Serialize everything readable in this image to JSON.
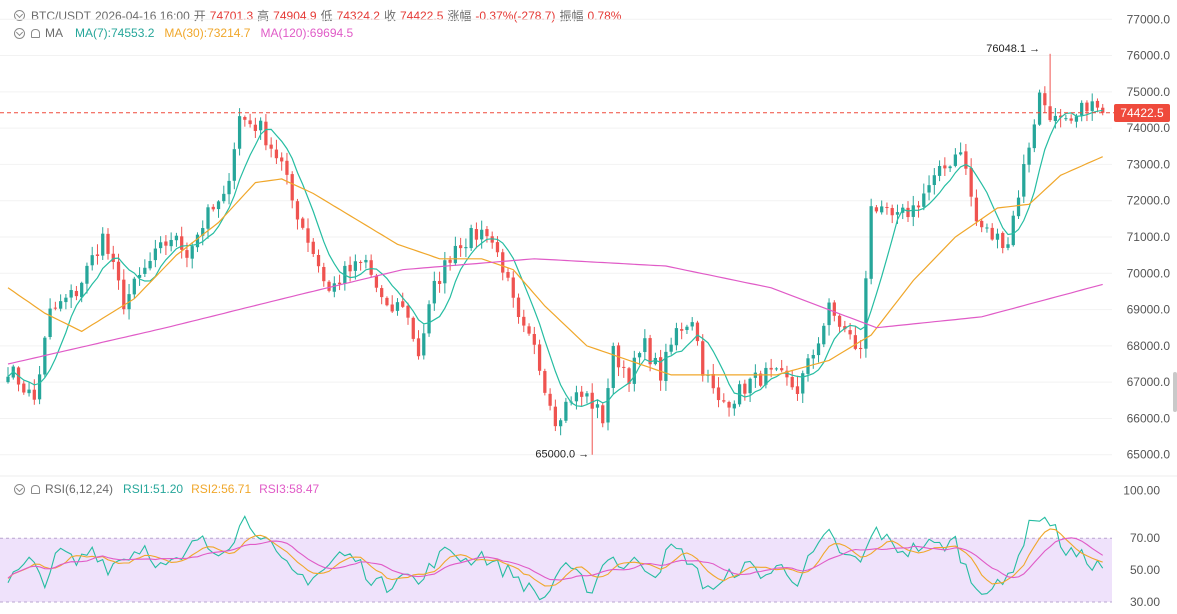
{
  "header": {
    "symbol": "BTC/USDT",
    "time": "2026-04-16 16:00",
    "open_label": "开",
    "open": "74701.3",
    "high_label": "高",
    "high": "74904.9",
    "low_label": "低",
    "low": "74324.2",
    "close_label": "收",
    "close": "74422.5",
    "change_label": "涨幅",
    "change": "-0.37%(-278.7)",
    "amplitude_label": "振幅",
    "amplitude": "0.78%"
  },
  "ma_legend": {
    "name": "MA",
    "items": [
      {
        "label": "MA(7):74553.2",
        "color": "#26bda2"
      },
      {
        "label": "MA(30):73214.7",
        "color": "#f0a72b"
      },
      {
        "label": "MA(120):69694.5",
        "color": "#e05bc7"
      }
    ]
  },
  "rsi_legend": {
    "name": "RSI(6,12,24)",
    "items": [
      {
        "label": "RSI1:51.20",
        "color": "#26bda2"
      },
      {
        "label": "RSI2:56.71",
        "color": "#f0a72b"
      },
      {
        "label": "RSI3:58.47",
        "color": "#e05bc7"
      }
    ]
  },
  "colors": {
    "up": "#26a69a",
    "down": "#ef5350",
    "price_line": "#ef4a3c",
    "rsi_band": "#efe2fb"
  },
  "current_price_tag": "74422.5",
  "chart_data": {
    "type": "candlestick",
    "price_axis": {
      "ylim": [
        64800,
        77200
      ],
      "ticks": [
        "65000.0",
        "66000.0",
        "67000.0",
        "68000.0",
        "69000.0",
        "70000.0",
        "71000.0",
        "72000.0",
        "73000.0",
        "74000.0",
        "75000.0",
        "76000.0",
        "77000.0"
      ]
    },
    "current_price": 74422.5,
    "annotations": [
      {
        "text": "76048.1",
        "value": 76048.1,
        "index": 198
      },
      {
        "text": "65000.0",
        "value": 65000.0,
        "index": 111
      }
    ],
    "rsi_axis": {
      "ylim": [
        25,
        104
      ],
      "ticks": [
        "30.00",
        "50.00",
        "70.00",
        "100.00"
      ],
      "band": [
        30,
        70
      ]
    },
    "close_anchors": [
      [
        0,
        67400
      ],
      [
        5,
        66500
      ],
      [
        8,
        68900
      ],
      [
        13,
        69500
      ],
      [
        18,
        71000
      ],
      [
        22,
        69200
      ],
      [
        27,
        70300
      ],
      [
        31,
        71000
      ],
      [
        34,
        70600
      ],
      [
        38,
        71600
      ],
      [
        41,
        72000
      ],
      [
        44,
        74300
      ],
      [
        48,
        74000
      ],
      [
        52,
        73000
      ],
      [
        54,
        72000
      ],
      [
        58,
        70600
      ],
      [
        61,
        69500
      ],
      [
        64,
        70000
      ],
      [
        68,
        70300
      ],
      [
        72,
        68900
      ],
      [
        75,
        69200
      ],
      [
        78,
        67800
      ],
      [
        81,
        69600
      ],
      [
        85,
        70800
      ],
      [
        88,
        71000
      ],
      [
        91,
        71200
      ],
      [
        94,
        70200
      ],
      [
        97,
        68600
      ],
      [
        100,
        67900
      ],
      [
        104,
        66000
      ],
      [
        107,
        66600
      ],
      [
        110,
        66600
      ],
      [
        113,
        66000
      ],
      [
        115,
        67800
      ],
      [
        118,
        67200
      ],
      [
        121,
        68000
      ],
      [
        124,
        67200
      ],
      [
        127,
        68400
      ],
      [
        130,
        68800
      ],
      [
        132,
        67400
      ],
      [
        135,
        66400
      ],
      [
        138,
        66600
      ],
      [
        141,
        67000
      ],
      [
        144,
        67200
      ],
      [
        147,
        67100
      ],
      [
        150,
        66800
      ],
      [
        153,
        67800
      ],
      [
        156,
        69000
      ],
      [
        159,
        68400
      ],
      [
        162,
        67800
      ],
      [
        164,
        72000
      ],
      [
        166,
        71600
      ],
      [
        169,
        71500
      ],
      [
        172,
        71800
      ],
      [
        175,
        72400
      ],
      [
        178,
        72900
      ],
      [
        181,
        73500
      ],
      [
        184,
        71400
      ],
      [
        187,
        71000
      ],
      [
        190,
        70900
      ],
      [
        193,
        72900
      ],
      [
        196,
        74900
      ],
      [
        199,
        74200
      ],
      [
        202,
        74000
      ],
      [
        205,
        74700
      ],
      [
        208,
        74422
      ]
    ],
    "rsi_anchors": [
      [
        0,
        43
      ],
      [
        4,
        55
      ],
      [
        7,
        44
      ],
      [
        10,
        62
      ],
      [
        13,
        54
      ],
      [
        16,
        64
      ],
      [
        19,
        52
      ],
      [
        22,
        58
      ],
      [
        26,
        65
      ],
      [
        29,
        52
      ],
      [
        33,
        55
      ],
      [
        36,
        70
      ],
      [
        39,
        62
      ],
      [
        42,
        67
      ],
      [
        45,
        82
      ],
      [
        48,
        74
      ],
      [
        51,
        58
      ],
      [
        54,
        48
      ],
      [
        57,
        45
      ],
      [
        60,
        50
      ],
      [
        63,
        60
      ],
      [
        66,
        57
      ],
      [
        69,
        45
      ],
      [
        72,
        39
      ],
      [
        75,
        52
      ],
      [
        78,
        40
      ],
      [
        81,
        56
      ],
      [
        84,
        63
      ],
      [
        87,
        56
      ],
      [
        90,
        60
      ],
      [
        93,
        52
      ],
      [
        96,
        48
      ],
      [
        99,
        38
      ],
      [
        102,
        32
      ],
      [
        105,
        52
      ],
      [
        108,
        46
      ],
      [
        111,
        38
      ],
      [
        114,
        60
      ],
      [
        117,
        52
      ],
      [
        120,
        56
      ],
      [
        123,
        48
      ],
      [
        126,
        64
      ],
      [
        129,
        58
      ],
      [
        132,
        42
      ],
      [
        135,
        38
      ],
      [
        138,
        50
      ],
      [
        141,
        52
      ],
      [
        144,
        47
      ],
      [
        147,
        52
      ],
      [
        150,
        44
      ],
      [
        153,
        60
      ],
      [
        156,
        72
      ],
      [
        159,
        58
      ],
      [
        162,
        55
      ],
      [
        165,
        76
      ],
      [
        168,
        65
      ],
      [
        171,
        62
      ],
      [
        174,
        66
      ],
      [
        177,
        65
      ],
      [
        180,
        68
      ],
      [
        183,
        43
      ],
      [
        186,
        38
      ],
      [
        189,
        40
      ],
      [
        192,
        60
      ],
      [
        195,
        85
      ],
      [
        198,
        80
      ],
      [
        201,
        62
      ],
      [
        204,
        58
      ],
      [
        208,
        51
      ]
    ],
    "series": [
      {
        "name": "MA(7)",
        "color": "#26bda2"
      },
      {
        "name": "MA(30)",
        "color": "#f0a72b"
      },
      {
        "name": "MA(120)",
        "color": "#e05bc7"
      }
    ]
  }
}
